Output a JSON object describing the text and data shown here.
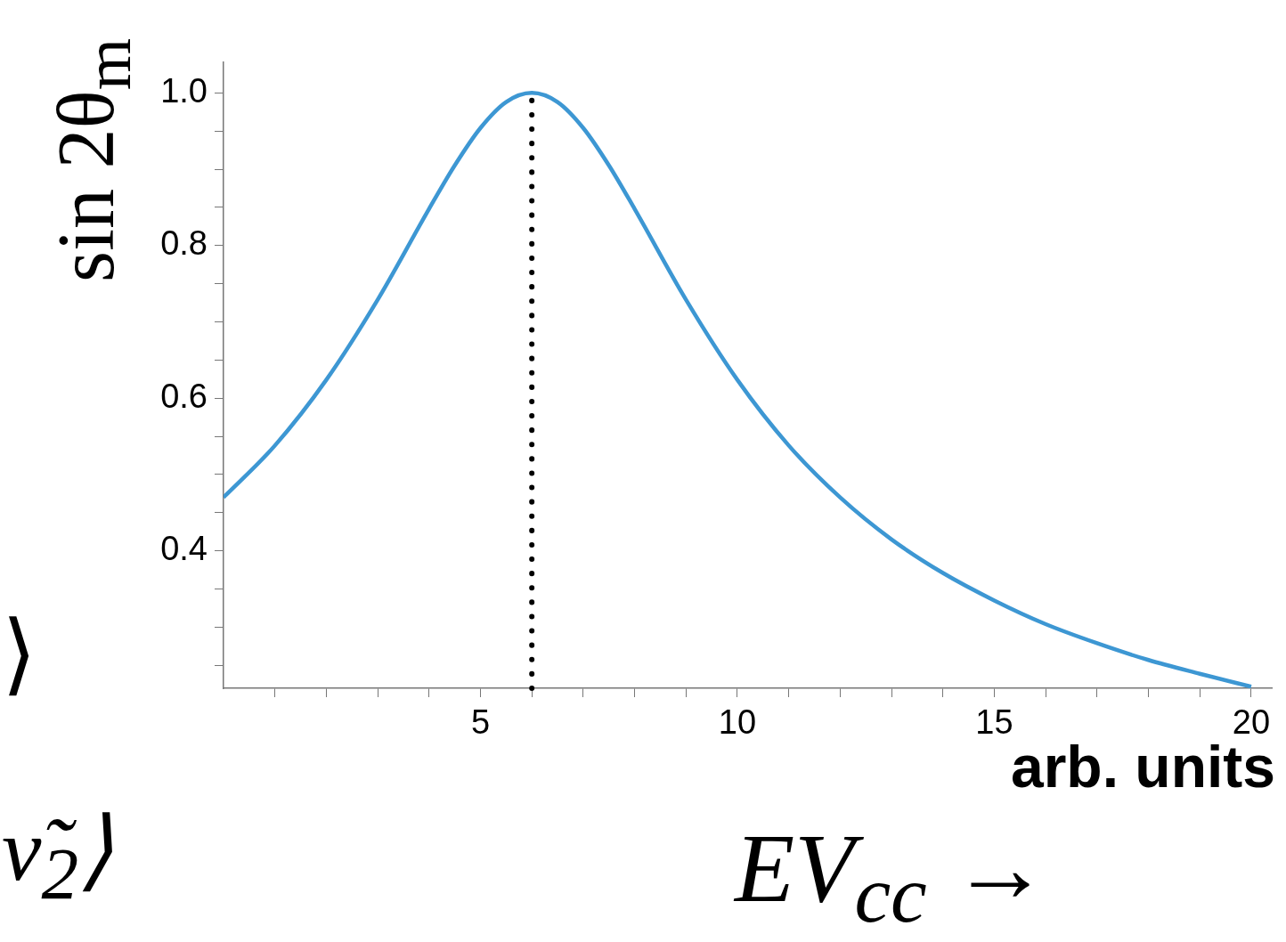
{
  "chart_data": {
    "type": "line",
    "xlabel": "arb. units",
    "ylabel": "sin 2θ$_{m}$",
    "annotations": [
      "EV$_{cc}$ →",
      "⟩",
      "ν̃$_{2}$⟩"
    ],
    "x": [
      0,
      1,
      2,
      3,
      4,
      4.5,
      5,
      5.5,
      6,
      6.5,
      7,
      7.5,
      8,
      9,
      10,
      11,
      12,
      13,
      14,
      15,
      16,
      17,
      18,
      19,
      20
    ],
    "series": [
      {
        "color": "#3d97d3",
        "values": [
          0.47,
          0.538,
          0.624,
          0.729,
          0.848,
          0.905,
          0.954,
          0.988,
          1.0,
          0.988,
          0.954,
          0.905,
          0.848,
          0.729,
          0.624,
          0.538,
          0.47,
          0.415,
          0.371,
          0.335,
          0.304,
          0.279,
          0.257,
          0.239,
          0.222
        ]
      }
    ],
    "xlim": [
      0,
      20.4
    ],
    "ylim": [
      0.22,
      1.04
    ],
    "xticks": [
      {
        "value": 1,
        "label": null
      },
      {
        "value": 2,
        "label": null
      },
      {
        "value": 3,
        "label": null
      },
      {
        "value": 4,
        "label": null
      },
      5,
      {
        "value": 6,
        "label": null
      },
      {
        "value": 7,
        "label": null
      },
      {
        "value": 8,
        "label": null
      },
      {
        "value": 9,
        "label": null
      },
      10,
      {
        "value": 11,
        "label": null
      },
      {
        "value": 12,
        "label": null
      },
      {
        "value": 13,
        "label": null
      },
      {
        "value": 14,
        "label": null
      },
      15,
      {
        "value": 16,
        "label": null
      },
      {
        "value": 17,
        "label": null
      },
      {
        "value": 18,
        "label": null
      },
      {
        "value": 19,
        "label": null
      },
      20
    ],
    "yticks": [
      {
        "value": 0.25,
        "label": null
      },
      {
        "value": 0.3,
        "label": null
      },
      {
        "value": 0.35,
        "label": null
      },
      0.4,
      {
        "value": 0.45,
        "label": null
      },
      {
        "value": 0.5,
        "label": null
      },
      {
        "value": 0.55,
        "label": null
      },
      0.6,
      {
        "value": 0.65,
        "label": null
      },
      {
        "value": 0.7,
        "label": null
      },
      {
        "value": 0.75,
        "label": null
      },
      0.8,
      {
        "value": 0.85,
        "label": null
      },
      {
        "value": 0.9,
        "label": null
      },
      {
        "value": 0.95,
        "label": null
      },
      {
        "value": 1,
        "label": "1.0"
      }
    ],
    "ref_lines": [
      {
        "axis": "x",
        "value": 6,
        "color": "#000000",
        "line_style": "dotted"
      }
    ],
    "grid": false,
    "legend": false,
    "marker": "none",
    "line_style": "solid"
  }
}
